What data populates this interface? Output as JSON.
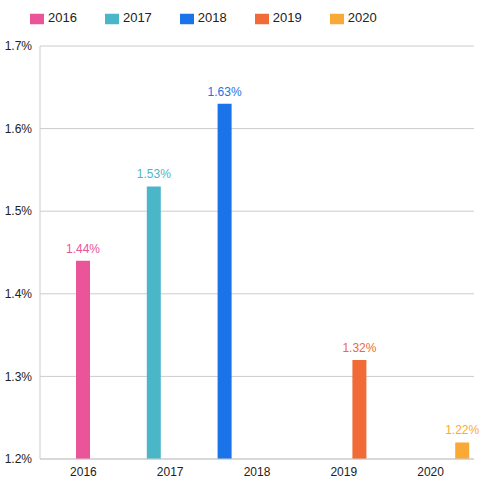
{
  "chart_data": {
    "type": "bar",
    "categories": [
      "2016",
      "2017",
      "2018",
      "2019",
      "2020"
    ],
    "series": [
      {
        "name": "2018",
        "color": "#1a73e8",
        "values": [
          null,
          null,
          1.63,
          null,
          null
        ],
        "value_labels": [
          null,
          null,
          "1.63%",
          null,
          null
        ]
      },
      {
        "name": "2017",
        "color": "#4cb6c9",
        "values": [
          null,
          1.53,
          null,
          null,
          null
        ],
        "value_labels": [
          null,
          "1.53%",
          null,
          null,
          null
        ]
      },
      {
        "name": "2016",
        "color": "#ea5498",
        "values": [
          1.44,
          null,
          null,
          null,
          null
        ],
        "value_labels": [
          "1.44%",
          null,
          null,
          null,
          null
        ]
      },
      {
        "name": "2019",
        "color": "#f06b35",
        "values": [
          null,
          null,
          null,
          1.32,
          null
        ],
        "value_labels": [
          null,
          null,
          null,
          "1.32%",
          null
        ]
      },
      {
        "name": "2020",
        "color": "#f9a935",
        "values": [
          null,
          null,
          null,
          null,
          1.22
        ],
        "value_labels": [
          null,
          null,
          null,
          null,
          "1.22%"
        ]
      }
    ],
    "ylim": [
      1.2,
      1.7
    ],
    "yticks": [
      {
        "value": 1.2,
        "label": "1.2%"
      },
      {
        "value": 1.3,
        "label": "1.3%"
      },
      {
        "value": 1.4,
        "label": "1.4%"
      },
      {
        "value": 1.5,
        "label": "1.5%"
      },
      {
        "value": 1.6,
        "label": "1.6%"
      },
      {
        "value": 1.7,
        "label": "1.7%"
      }
    ],
    "grid": true,
    "legend": "top-left",
    "data_labels": true
  }
}
